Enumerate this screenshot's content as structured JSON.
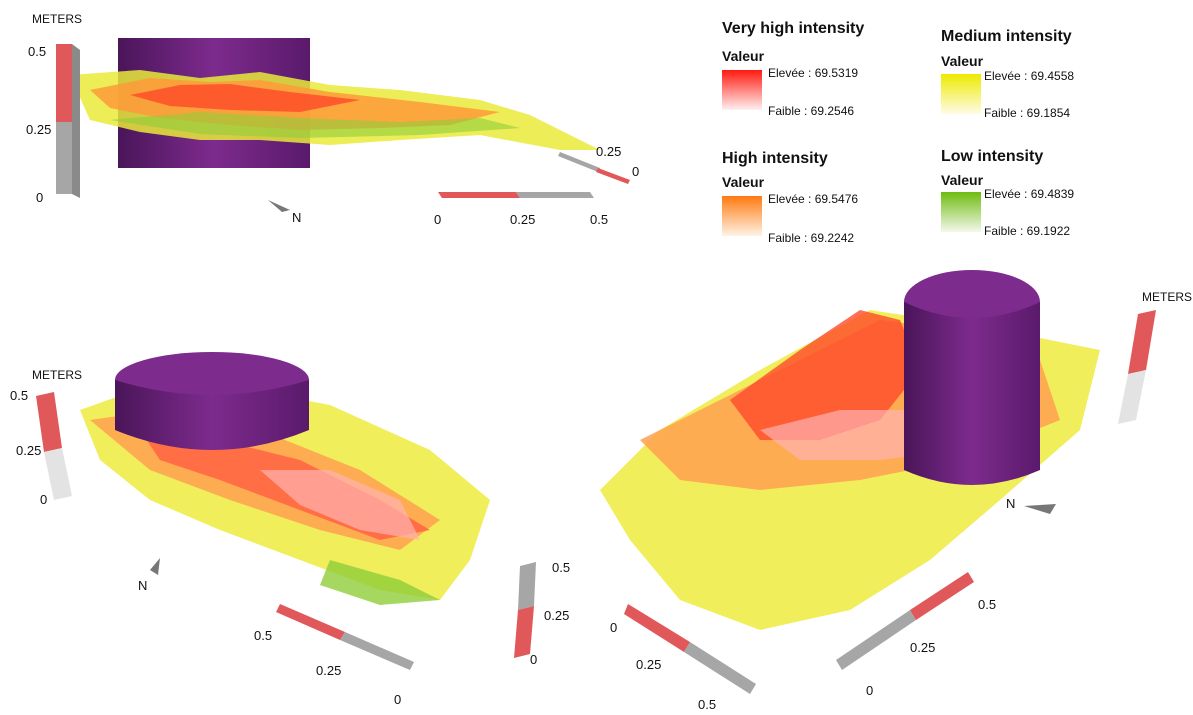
{
  "legend": [
    {
      "title": "Very high intensity",
      "sub": "Valeur",
      "high": "Elevée : 69.5319",
      "low": "Faible : 69.2546",
      "color": "#ff2a1a"
    },
    {
      "title": "Medium intensity",
      "sub": "Valeur",
      "high": "Elevée : 69.4558",
      "low": "Faible : 69.1854",
      "color": "#f2ee00"
    },
    {
      "title": "High intensity",
      "sub": "Valeur",
      "high": "Elevée : 69.5476",
      "low": "Faible : 69.2242",
      "color": "#ff8a1e"
    },
    {
      "title": "Low intensity",
      "sub": "Valeur",
      "high": "Elevée : 69.4839",
      "low": "Faible : 69.1922",
      "color": "#7ac41e"
    }
  ],
  "meters_label": "METERS",
  "north": "N",
  "ticks": {
    "zero": "0",
    "quarter": "0.25",
    "half": "0.5"
  },
  "colors": {
    "cylinder": "#6e1f7d",
    "scale_red": "#e0585a",
    "scale_grey": "#a6a6a6"
  }
}
